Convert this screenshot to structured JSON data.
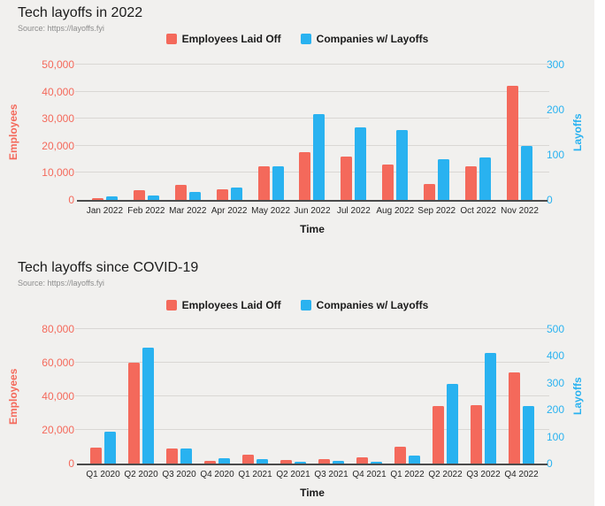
{
  "colors": {
    "employees": "#f4695b",
    "companies": "#29b2f0",
    "grid": "#d9d7d4",
    "axis_line": "#4b4b4b",
    "background": "#f1f0ee"
  },
  "chart_data": [
    {
      "type": "bar",
      "title": "Tech layoffs in 2022",
      "subtitle": "Source: https://layoffs.fyi",
      "categories": [
        "Jan 2022",
        "Feb 2022",
        "Mar 2022",
        "Apr 2022",
        "May 2022",
        "Jun 2022",
        "Jul 2022",
        "Aug 2022",
        "Sep 2022",
        "Oct 2022",
        "Nov 2022"
      ],
      "series": [
        {
          "name": "Employees Laid Off",
          "axis": "left",
          "color": "#f4695b",
          "values": [
            600,
            3500,
            5500,
            4000,
            12500,
            17500,
            16000,
            13000,
            6000,
            12500,
            42000
          ]
        },
        {
          "name": "Companies w/ Layoffs",
          "axis": "right",
          "color": "#29b2f0",
          "values": [
            7,
            10,
            18,
            28,
            75,
            190,
            160,
            155,
            91,
            95,
            120
          ]
        }
      ],
      "xlabel": "Time",
      "ylabel_left": "Employees",
      "ylabel_right": "Layoffs",
      "ylim_left": [
        0,
        50000
      ],
      "ylim_right": [
        0,
        300
      ],
      "ytick_step_left": 10000,
      "ytick_step_right": 100,
      "grid": true,
      "legend_position": "top"
    },
    {
      "type": "bar",
      "title": "Tech layoffs since COVID-19",
      "subtitle": "Source: https://layoffs.fyi",
      "categories": [
        "Q1 2020",
        "Q2 2020",
        "Q3 2020",
        "Q4 2020",
        "Q1 2021",
        "Q2 2021",
        "Q3 2021",
        "Q4 2021",
        "Q1 2022",
        "Q2 2022",
        "Q3 2022",
        "Q4 2022"
      ],
      "series": [
        {
          "name": "Employees Laid Off",
          "axis": "left",
          "color": "#f4695b",
          "values": [
            9500,
            60000,
            9000,
            1500,
            5500,
            2000,
            2500,
            3500,
            10000,
            34000,
            35000,
            54000
          ]
        },
        {
          "name": "Companies w/ Layoffs",
          "axis": "right",
          "color": "#29b2f0",
          "values": [
            120,
            430,
            57,
            20,
            17,
            5,
            10,
            5,
            30,
            295,
            410,
            215
          ]
        }
      ],
      "xlabel": "Time",
      "ylabel_left": "Employees",
      "ylabel_right": "Layoffs",
      "ylim_left": [
        0,
        80000
      ],
      "ylim_right": [
        0,
        500
      ],
      "ytick_step_left": 20000,
      "ytick_step_right": 100,
      "grid": true,
      "legend_position": "top"
    }
  ]
}
